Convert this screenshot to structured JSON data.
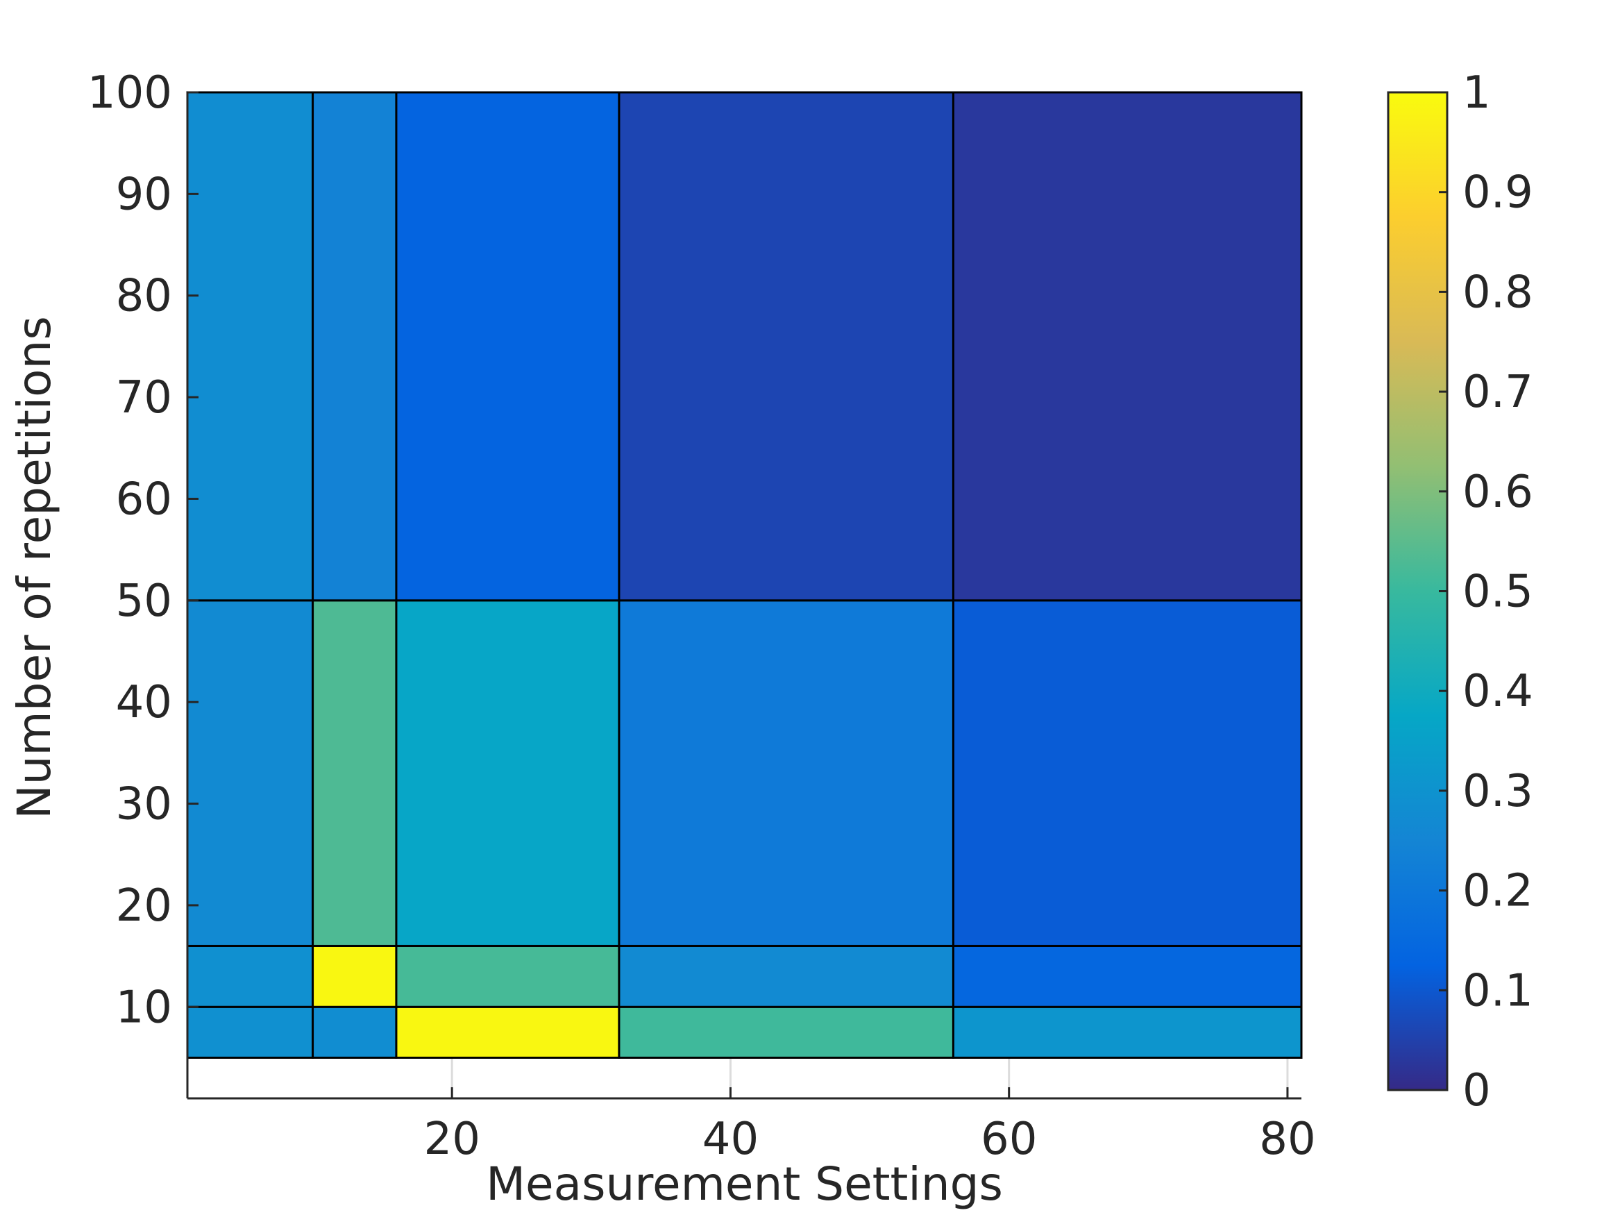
{
  "chart_data": {
    "type": "heatmap",
    "title": "",
    "xlabel": "Measurement Settings",
    "ylabel": "Number of repetitions",
    "xlim": [
      1,
      81
    ],
    "ylim": [
      1,
      100
    ],
    "xticks": [
      20,
      40,
      60,
      80
    ],
    "xtick_labels": [
      "20",
      "40",
      "60",
      "80"
    ],
    "yticks": [
      10,
      20,
      30,
      40,
      50,
      60,
      70,
      80,
      90,
      100
    ],
    "ytick_labels": [
      "10",
      "20",
      "30",
      "40",
      "50",
      "60",
      "70",
      "80",
      "90",
      "100"
    ],
    "grid": "x",
    "x_edges": [
      1,
      10,
      16,
      32,
      56,
      81
    ],
    "y_edges": [
      5,
      10,
      16,
      50,
      100
    ],
    "values": [
      [
        0.29,
        0.28,
        0.99,
        0.51,
        0.31
      ],
      [
        0.29,
        0.99,
        0.52,
        0.27,
        0.14
      ],
      [
        0.27,
        0.53,
        0.37,
        0.21,
        0.11
      ],
      [
        0.28,
        0.24,
        0.13,
        0.06,
        0.03
      ]
    ],
    "colorbar": {
      "clim": [
        0,
        1
      ],
      "ticks": [
        0,
        0.1,
        0.2,
        0.3,
        0.4,
        0.5,
        0.6,
        0.7,
        0.8,
        0.9,
        1
      ],
      "tick_labels": [
        "0",
        "0.1",
        "0.2",
        "0.3",
        "0.4",
        "0.5",
        "0.6",
        "0.7",
        "0.8",
        "0.9",
        "1"
      ],
      "colormap": [
        "#352a87",
        "#0363e1",
        "#1485d4",
        "#06a7c6",
        "#38b99e",
        "#92bf73",
        "#d9ba56",
        "#fcce2e",
        "#f9fb0e"
      ]
    }
  }
}
